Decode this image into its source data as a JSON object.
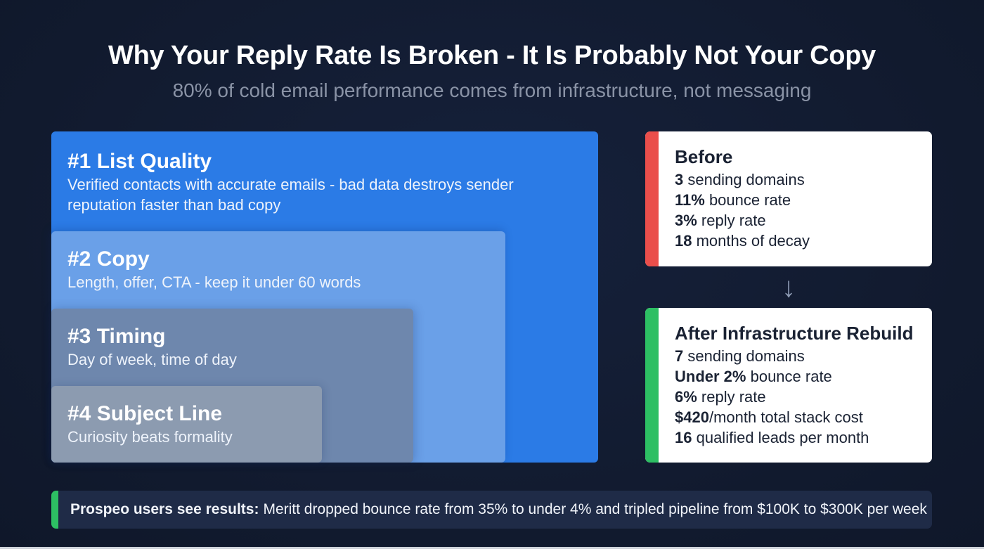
{
  "header": {
    "title": "Why Your Reply Rate Is Broken - It Is Probably Not Your Copy",
    "subtitle": "80% of cold email performance comes from infrastructure, not messaging"
  },
  "factors": [
    {
      "heading": "#1 List Quality",
      "description": "Verified contacts with accurate emails - bad data destroys sender reputation faster than bad copy",
      "color": "#2b7be6"
    },
    {
      "heading": "#2 Copy",
      "description": "Length, offer, CTA - keep it under 60 words",
      "color": "#6aa0e8"
    },
    {
      "heading": "#3 Timing",
      "description": "Day of week, time of day",
      "color": "#6e87ad"
    },
    {
      "heading": "#4 Subject Line",
      "description": "Curiosity beats formality",
      "color": "#8c9bb0"
    }
  ],
  "before": {
    "title": "Before",
    "accent": "#ea4e4b",
    "rows": [
      {
        "value": "3",
        "text": " sending domains"
      },
      {
        "value": "11%",
        "text": " bounce rate"
      },
      {
        "value": "3%",
        "text": " reply rate"
      },
      {
        "value": "18",
        "text": " months of decay"
      }
    ]
  },
  "arrow": {
    "icon": "arrow-down-icon",
    "glyph": "↓"
  },
  "after": {
    "title": "After Infrastructure Rebuild",
    "accent": "#2dbf63",
    "rows": [
      {
        "value": "7",
        "text": " sending domains"
      },
      {
        "value": "Under 2%",
        "text": " bounce rate"
      },
      {
        "value": "6%",
        "text": " reply rate"
      },
      {
        "value": "$420",
        "text": "/month total stack cost"
      },
      {
        "value": "16",
        "text": " qualified leads per month"
      }
    ]
  },
  "footer": {
    "label": "Prospeo users see results:",
    "text": "Meritt dropped bounce rate from 35% to under 4% and tripled pipeline from $100K to $300K per week",
    "accent": "#2dbf63"
  }
}
